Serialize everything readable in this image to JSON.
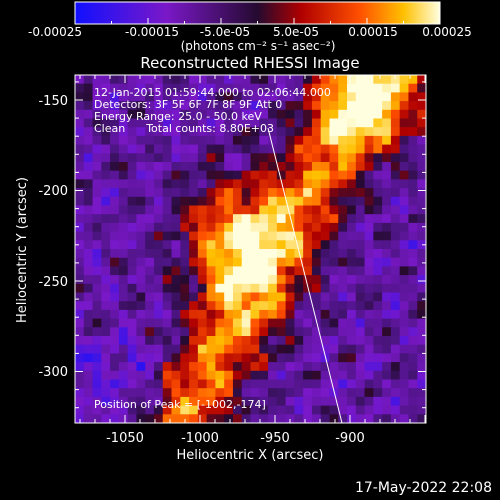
{
  "colorbar": {
    "tick_labels": [
      "-0.00025",
      "-0.00015",
      "-5.0e-05",
      "5.0e-05",
      "0.00015",
      "0.00025"
    ],
    "unit_label": "(photons cm⁻² s⁻¹ asec⁻²)",
    "range": [
      -0.00025,
      0.00025
    ]
  },
  "title": "Reconstructed RHESSI Image",
  "info": {
    "time_range": "12-Jan-2015 01:59:44.000 to 02:06:44.000",
    "detectors": "Detectors: 3F 5F 6F 7F 8F 9F Att 0",
    "energy_range": "Energy Range: 25.0 - 50.0 keV",
    "clean": "Clean      Total counts: 8.80E+03",
    "peak": "Position of Peak = [-1002,-174]"
  },
  "axes": {
    "xlabel": "Heliocentric X (arcsec)",
    "ylabel": "Heliocentric Y (arcsec)",
    "x_ticks": [
      "-1050",
      "-1000",
      "-950",
      "-900"
    ],
    "y_ticks": [
      "-150",
      "-200",
      "-250",
      "-300"
    ]
  },
  "footer_date": "17-May-2022 22:08"
}
